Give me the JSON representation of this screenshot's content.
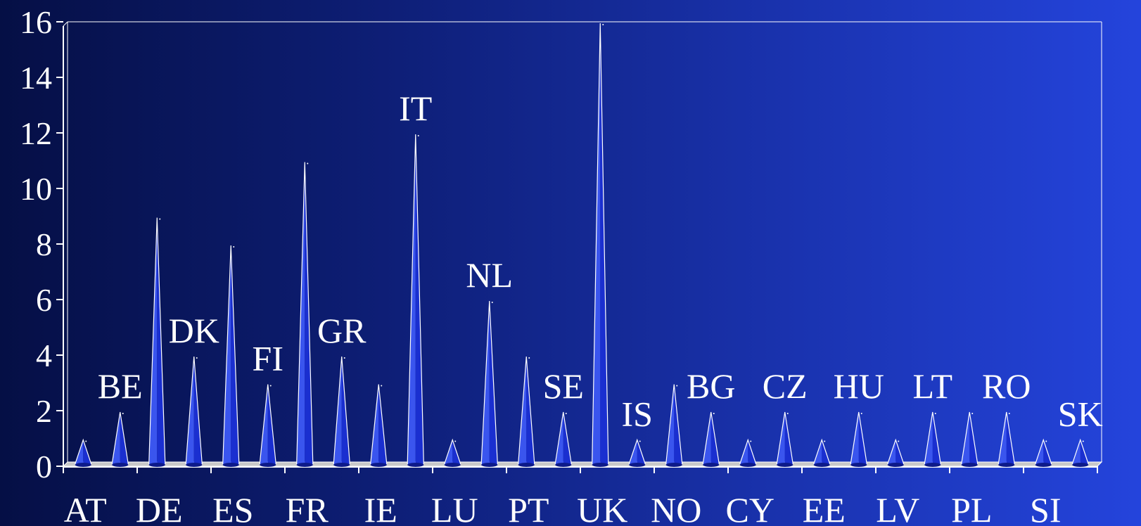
{
  "chart_data": {
    "type": "bar",
    "style": "3d-cone",
    "categories": [
      "AT",
      "BE",
      "DE",
      "DK",
      "ES",
      "FI",
      "FR",
      "GR",
      "IE",
      "IT",
      "LU",
      "NL",
      "PT",
      "SE",
      "UK",
      "IS",
      "NO",
      "BG",
      "CY",
      "CZ",
      "EE",
      "HU",
      "LV",
      "LT",
      "PL",
      "RO",
      "SI",
      "SK"
    ],
    "values": [
      1,
      2,
      9,
      4,
      8,
      3,
      11,
      4,
      3,
      12,
      1,
      6,
      4,
      2,
      16,
      1,
      3,
      2,
      1,
      2,
      1,
      2,
      1,
      2,
      2,
      2,
      1,
      1
    ],
    "x_tick_labels": [
      "AT",
      "DE",
      "ES",
      "FR",
      "IE",
      "LU",
      "PT",
      "UK",
      "NO",
      "CY",
      "EE",
      "LV",
      "PL",
      "SI"
    ],
    "peak_labels": [
      "BE",
      "DK",
      "FI",
      "GR",
      "IT",
      "NL",
      "SE",
      "IS",
      "BG",
      "CZ",
      "HU",
      "LT",
      "RO",
      "SK"
    ],
    "y_ticks": [
      0,
      2,
      4,
      6,
      8,
      10,
      12,
      14,
      16
    ],
    "ylim": [
      0,
      16
    ],
    "title": "",
    "xlabel": "",
    "ylabel": "",
    "grid": false,
    "colors": {
      "bar": "#1a2fd0",
      "bar_dark": "#0d1a8a",
      "bar_light": "#3a55ee",
      "outline": "#ffffff",
      "floor": "#c8c8c8"
    }
  }
}
